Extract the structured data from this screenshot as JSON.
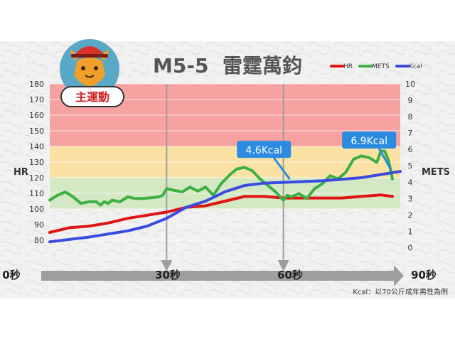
{
  "chart_data": {
    "type": "line",
    "title": "M5-5  雷霆萬鈞",
    "badge_label": "主運動",
    "y_left": {
      "label": "HR",
      "ylim": [
        70,
        180
      ],
      "ticks": [
        80,
        90,
        100,
        110,
        120,
        130,
        140,
        150,
        160,
        170,
        180
      ]
    },
    "y_right": {
      "label": "METS",
      "ylim": [
        -0.5,
        10
      ],
      "ticks": [
        0,
        1,
        2,
        3,
        4,
        5,
        6,
        7,
        8,
        9,
        10
      ]
    },
    "x_axis": {
      "range": [
        0,
        90
      ],
      "labels": [
        "0秒",
        "30秒",
        "60秒",
        "90秒"
      ],
      "label_values": [
        0,
        30,
        60,
        90
      ]
    },
    "grid": true,
    "zones": [
      {
        "from": 140,
        "to": 180,
        "color": "#f7a1a1"
      },
      {
        "from": 120,
        "to": 140,
        "color": "#fbe2a4"
      },
      {
        "from": 100,
        "to": 120,
        "color": "#d4e8c3"
      }
    ],
    "markers": [
      30,
      60
    ],
    "legend": {
      "placement": "top-right",
      "entries": [
        {
          "name": "HR",
          "color": "#e01414"
        },
        {
          "name": "METS",
          "color": "#3cb043"
        },
        {
          "name": "Kcal",
          "color": "#3a4be0"
        }
      ]
    },
    "series": [
      {
        "name": "HR",
        "axis": "left",
        "color": "#e01414",
        "x": [
          0,
          5,
          10,
          15,
          20,
          25,
          30,
          35,
          40,
          45,
          50,
          55,
          60,
          65,
          70,
          75,
          80,
          85,
          88
        ],
        "values": [
          85,
          88,
          89,
          91,
          94,
          96,
          98,
          101,
          102,
          105,
          108,
          108,
          107,
          107,
          107,
          107,
          108,
          109,
          108
        ]
      },
      {
        "name": "METS",
        "axis": "right",
        "color": "#3cb043",
        "x": [
          0,
          2,
          4,
          6,
          8,
          10,
          12,
          13,
          14,
          15,
          16,
          18,
          20,
          22,
          24,
          26,
          28,
          29,
          30,
          32,
          34,
          36,
          38,
          40,
          42,
          44,
          46,
          48,
          50,
          52,
          54,
          56,
          58,
          60,
          61,
          62,
          64,
          66,
          68,
          70,
          72,
          74,
          76,
          78,
          80,
          82,
          84,
          85,
          86,
          87,
          88
        ],
        "values": [
          2.9,
          3.2,
          3.4,
          3.1,
          2.7,
          2.8,
          2.8,
          2.6,
          2.8,
          2.7,
          2.9,
          2.8,
          3.1,
          3.0,
          3.0,
          3.05,
          3.1,
          3.2,
          3.6,
          3.5,
          3.4,
          3.7,
          3.45,
          3.7,
          3.2,
          3.9,
          4.4,
          4.8,
          4.9,
          4.7,
          4.2,
          3.8,
          3.4,
          2.9,
          3.2,
          3.1,
          3.3,
          3.0,
          3.6,
          3.9,
          4.4,
          4.2,
          4.6,
          5.4,
          5.6,
          5.5,
          5.2,
          5.9,
          5.9,
          5.3,
          4.2
        ]
      },
      {
        "name": "Kcal",
        "axis": "left",
        "color": "#3a4be0",
        "x": [
          0,
          10,
          20,
          25,
          30,
          35,
          40,
          45,
          50,
          55,
          60,
          65,
          70,
          75,
          80,
          85,
          90
        ],
        "values": [
          79,
          82,
          86,
          89,
          94,
          101,
          105,
          111,
          115,
          116.5,
          117,
          117.5,
          118,
          119,
          120,
          122,
          124
        ]
      }
    ],
    "annotations": [
      {
        "text": "4.6Kcal",
        "x": 55,
        "target_x": 62
      },
      {
        "text": "6.9Kcal",
        "x": 82,
        "target_x": 88
      }
    ],
    "footnote": "Kcal：以70公斤成年男性為例"
  }
}
